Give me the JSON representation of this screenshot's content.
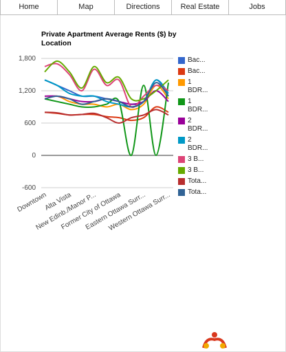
{
  "nav": [
    "Home",
    "Map",
    "Directions",
    "Real Estate",
    "Jobs"
  ],
  "chart_data": {
    "type": "line",
    "title": "Private Apartment Average Rents ($) by Location",
    "categories": [
      "Downtown",
      null,
      "Alta Vista",
      null,
      "New Edinb./Manor P...",
      null,
      "Former City of Ottawa",
      null,
      "Eastern Ottawa Surr...",
      null,
      "Western Ottawa Surr..."
    ],
    "ylim": [
      -600,
      1800
    ],
    "yticks": [
      {
        "value": -600,
        "label": "-600"
      },
      0,
      600,
      {
        "value": 1200,
        "label": "1,200"
      },
      {
        "value": 1800,
        "label": "1,800"
      }
    ],
    "grid": true,
    "legend": "right",
    "series": [
      {
        "name": "Bac...",
        "color": "#3366cc",
        "values": [
          1400,
          1300,
          1200,
          1100,
          1100,
          1050,
          1000,
          950,
          1000,
          1400,
          1100
        ]
      },
      {
        "name": "Bac...",
        "color": "#dc3912",
        "values": [
          800,
          780,
          750,
          760,
          760,
          720,
          700,
          650,
          700,
          900,
          800
        ]
      },
      {
        "name": "1 BDR...",
        "color": "#ff9900",
        "values": [
          1050,
          1100,
          1000,
          950,
          950,
          900,
          950,
          850,
          950,
          1300,
          1050
        ]
      },
      {
        "name": "1 BDR...",
        "color": "#109618",
        "values": [
          1050,
          1000,
          950,
          900,
          900,
          950,
          1000,
          0,
          1300,
          0,
          1350
        ]
      },
      {
        "name": "2 BDR...",
        "color": "#990099",
        "values": [
          1100,
          1100,
          1050,
          1000,
          1000,
          1050,
          1000,
          950,
          1000,
          1200,
          1000
        ]
      },
      {
        "name": "2 BDR...",
        "color": "#0099c6",
        "values": [
          1400,
          1300,
          1150,
          1100,
          1100,
          1000,
          950,
          900,
          1000,
          1400,
          1150
        ]
      },
      {
        "name": "3 B...",
        "color": "#dd4477",
        "values": [
          1650,
          1700,
          1500,
          1200,
          1600,
          1300,
          1400,
          900,
          1100,
          1300,
          1200
        ]
      },
      {
        "name": "3 B...",
        "color": "#66aa00",
        "values": [
          1550,
          1750,
          1550,
          1250,
          1650,
          1350,
          1450,
          1050,
          1050,
          1200,
          1400
        ]
      },
      {
        "name": "Tota...",
        "color": "#b82e2e",
        "values": [
          800,
          790,
          750,
          760,
          780,
          700,
          600,
          700,
          750,
          850,
          750
        ]
      },
      {
        "name": "Tota...",
        "color": "#316395",
        "values": [
          1050,
          1100,
          1050,
          950,
          1000,
          1050,
          1000,
          900,
          1000,
          1350,
          1100
        ]
      }
    ]
  }
}
